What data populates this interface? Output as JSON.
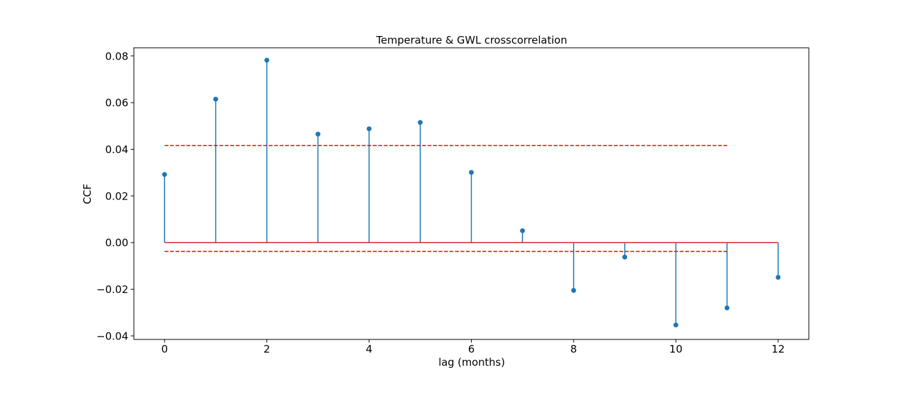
{
  "chart_data": {
    "type": "stem",
    "title": "Temperature & GWL crosscorrelation",
    "xlabel": "lag (months)",
    "ylabel": "CCF",
    "xlim": [
      -0.6,
      12.6
    ],
    "ylim": [
      -0.0415,
      0.0835
    ],
    "xticks": [
      0,
      2,
      4,
      6,
      8,
      10,
      12
    ],
    "xtick_labels": [
      "0",
      "2",
      "4",
      "6",
      "8",
      "10",
      "12"
    ],
    "yticks": [
      -0.04,
      -0.02,
      0.0,
      0.02,
      0.04,
      0.06,
      0.08
    ],
    "ytick_labels": [
      "−0.04",
      "−0.02",
      "0.00",
      "0.02",
      "0.04",
      "0.06",
      "0.08"
    ],
    "lags": [
      0,
      1,
      2,
      3,
      4,
      5,
      6,
      7,
      8,
      9,
      10,
      11,
      12
    ],
    "values": [
      0.0292,
      0.0615,
      0.0782,
      0.0465,
      0.0488,
      0.0515,
      0.0301,
      0.0051,
      -0.0205,
      -0.0062,
      -0.0353,
      -0.028,
      -0.0149
    ],
    "confidence_upper": 0.0416,
    "confidence_lower": -0.0038,
    "confidence_x_range": [
      0,
      11
    ],
    "baseline": 0.0,
    "colors": {
      "stem": "#1f77b4",
      "marker": "#1f77b4",
      "baseline": "#d62728",
      "confidence": "#ff0000"
    }
  }
}
